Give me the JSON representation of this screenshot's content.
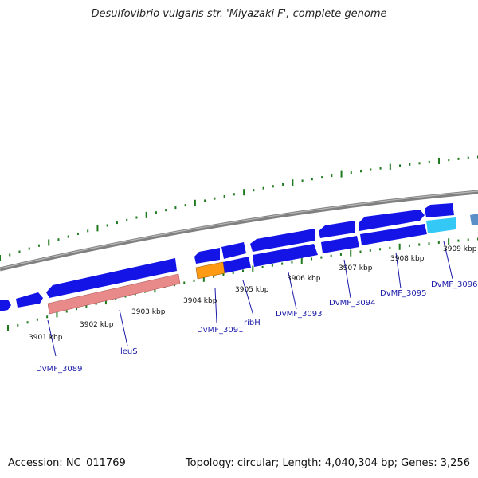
{
  "title": "Desulfovibrio vulgaris str. 'Miyazaki F', complete genome",
  "footer": {
    "accession": "Accession: NC_011769",
    "summary": "Topology: circular; Length: 4,040,304 bp; Genes: 3,256"
  },
  "colors": {
    "backbone": "#808080",
    "gene_blue": "#1414e6",
    "gene_pink": "#e88a8a",
    "gene_orange": "#ff9a14",
    "gene_cyan": "#33c8f5",
    "gene_steel": "#5a8fc8",
    "tick_green": "#1e7a1e",
    "label_blue": "#1a1aa8"
  },
  "ticks": [
    "3901 kbp",
    "3902 kbp",
    "3903 kbp",
    "3904 kbp",
    "3905 kbp",
    "3906 kbp",
    "3907 kbp",
    "3908 kbp",
    "3909 kbp"
  ],
  "gene_labels": [
    "DvMF_3089",
    "leuS",
    "DvMF_3091",
    "ribH",
    "DvMF_3093",
    "DvMF_3094",
    "DvMF_3095",
    "DvMF_3096"
  ]
}
